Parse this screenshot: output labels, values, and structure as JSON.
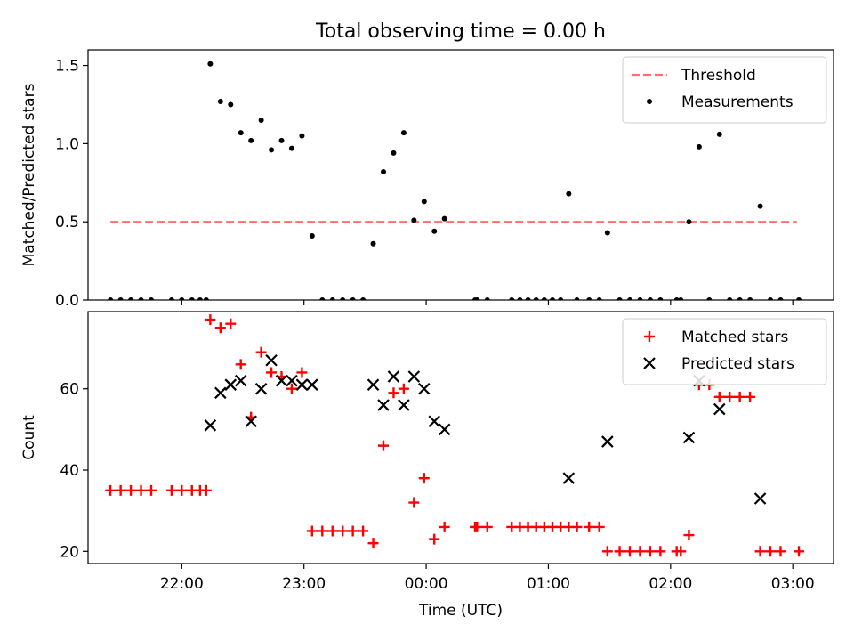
{
  "figure": {
    "title": "Total observing time = 0.00 h"
  },
  "chart_data": [
    {
      "type": "scatter",
      "ylabel": "Matched/Predicted stars",
      "ylim": [
        0,
        1.6
      ],
      "xlim": [
        "21:14",
        "03:20"
      ],
      "yticks": [
        "0.0",
        "0.5",
        "1.0",
        "1.5"
      ],
      "legend_position": "top-right",
      "grid": false,
      "threshold": {
        "name": "Threshold",
        "value": 0.5,
        "x_range": [
          "21:25",
          "03:02"
        ],
        "color": "#ff6f6f",
        "style": "dashed"
      },
      "series": [
        {
          "name": "Measurements",
          "color": "#000000",
          "marker": "dot",
          "points": [
            {
              "x": "21:25",
              "y": 0.0
            },
            {
              "x": "21:30",
              "y": 0.0
            },
            {
              "x": "21:35",
              "y": 0.0
            },
            {
              "x": "21:40",
              "y": 0.0
            },
            {
              "x": "21:45",
              "y": 0.0
            },
            {
              "x": "21:55",
              "y": 0.0
            },
            {
              "x": "22:00",
              "y": 0.0
            },
            {
              "x": "22:05",
              "y": 0.0
            },
            {
              "x": "22:09",
              "y": 0.0
            },
            {
              "x": "22:12",
              "y": 0.0
            },
            {
              "x": "22:14",
              "y": 1.51
            },
            {
              "x": "22:19",
              "y": 1.27
            },
            {
              "x": "22:24",
              "y": 1.25
            },
            {
              "x": "22:29",
              "y": 1.07
            },
            {
              "x": "22:34",
              "y": 1.02
            },
            {
              "x": "22:39",
              "y": 1.15
            },
            {
              "x": "22:44",
              "y": 0.96
            },
            {
              "x": "22:49",
              "y": 1.02
            },
            {
              "x": "22:54",
              "y": 0.97
            },
            {
              "x": "22:59",
              "y": 1.05
            },
            {
              "x": "23:04",
              "y": 0.41
            },
            {
              "x": "23:09",
              "y": 0.0
            },
            {
              "x": "23:14",
              "y": 0.0
            },
            {
              "x": "23:19",
              "y": 0.0
            },
            {
              "x": "23:24",
              "y": 0.0
            },
            {
              "x": "23:29",
              "y": 0.0
            },
            {
              "x": "23:34",
              "y": 0.36
            },
            {
              "x": "23:39",
              "y": 0.82
            },
            {
              "x": "23:44",
              "y": 0.94
            },
            {
              "x": "23:49",
              "y": 1.07
            },
            {
              "x": "23:54",
              "y": 0.51
            },
            {
              "x": "23:59",
              "y": 0.63
            },
            {
              "x": "00:04",
              "y": 0.44
            },
            {
              "x": "00:09",
              "y": 0.52
            },
            {
              "x": "00:24",
              "y": 0.0
            },
            {
              "x": "00:25",
              "y": 0.0
            },
            {
              "x": "00:30",
              "y": 0.0
            },
            {
              "x": "00:42",
              "y": 0.0
            },
            {
              "x": "00:46",
              "y": 0.0
            },
            {
              "x": "00:50",
              "y": 0.0
            },
            {
              "x": "00:54",
              "y": 0.0
            },
            {
              "x": "00:58",
              "y": 0.0
            },
            {
              "x": "01:02",
              "y": 0.0
            },
            {
              "x": "01:06",
              "y": 0.0
            },
            {
              "x": "01:10",
              "y": 0.68
            },
            {
              "x": "01:14",
              "y": 0.0
            },
            {
              "x": "01:20",
              "y": 0.0
            },
            {
              "x": "01:25",
              "y": 0.0
            },
            {
              "x": "01:29",
              "y": 0.43
            },
            {
              "x": "01:35",
              "y": 0.0
            },
            {
              "x": "01:40",
              "y": 0.0
            },
            {
              "x": "01:45",
              "y": 0.0
            },
            {
              "x": "01:50",
              "y": 0.0
            },
            {
              "x": "01:55",
              "y": 0.0
            },
            {
              "x": "02:03",
              "y": 0.0
            },
            {
              "x": "02:05",
              "y": 0.0
            },
            {
              "x": "02:09",
              "y": 0.5
            },
            {
              "x": "02:14",
              "y": 0.98
            },
            {
              "x": "02:19",
              "y": 0.0
            },
            {
              "x": "02:24",
              "y": 1.06
            },
            {
              "x": "02:29",
              "y": 0.0
            },
            {
              "x": "02:34",
              "y": 0.0
            },
            {
              "x": "02:39",
              "y": 0.0
            },
            {
              "x": "02:44",
              "y": 0.6
            },
            {
              "x": "02:49",
              "y": 0.0
            },
            {
              "x": "02:54",
              "y": 0.0
            },
            {
              "x": "03:03",
              "y": 0.0
            }
          ]
        }
      ]
    },
    {
      "type": "scatter",
      "xlabel": "Time (UTC)",
      "ylabel": "Count",
      "ylim": [
        17,
        79
      ],
      "xlim": [
        "21:14",
        "03:20"
      ],
      "xticks": [
        "22:00",
        "23:00",
        "00:00",
        "01:00",
        "02:00",
        "03:00"
      ],
      "yticks": [
        "20",
        "40",
        "60"
      ],
      "legend_position": "top-right",
      "grid": false,
      "series": [
        {
          "name": "Matched stars",
          "color": "#ff0000",
          "marker": "plus",
          "points": [
            {
              "x": "21:25",
              "y": 35
            },
            {
              "x": "21:30",
              "y": 35
            },
            {
              "x": "21:35",
              "y": 35
            },
            {
              "x": "21:40",
              "y": 35
            },
            {
              "x": "21:45",
              "y": 35
            },
            {
              "x": "21:55",
              "y": 35
            },
            {
              "x": "22:00",
              "y": 35
            },
            {
              "x": "22:05",
              "y": 35
            },
            {
              "x": "22:09",
              "y": 35
            },
            {
              "x": "22:12",
              "y": 35
            },
            {
              "x": "22:14",
              "y": 77
            },
            {
              "x": "22:19",
              "y": 75
            },
            {
              "x": "22:24",
              "y": 76
            },
            {
              "x": "22:29",
              "y": 66
            },
            {
              "x": "22:34",
              "y": 53
            },
            {
              "x": "22:39",
              "y": 69
            },
            {
              "x": "22:44",
              "y": 64
            },
            {
              "x": "22:49",
              "y": 63
            },
            {
              "x": "22:54",
              "y": 60
            },
            {
              "x": "22:59",
              "y": 64
            },
            {
              "x": "23:04",
              "y": 25
            },
            {
              "x": "23:09",
              "y": 25
            },
            {
              "x": "23:14",
              "y": 25
            },
            {
              "x": "23:19",
              "y": 25
            },
            {
              "x": "23:24",
              "y": 25
            },
            {
              "x": "23:29",
              "y": 25
            },
            {
              "x": "23:34",
              "y": 22
            },
            {
              "x": "23:39",
              "y": 46
            },
            {
              "x": "23:44",
              "y": 59
            },
            {
              "x": "23:49",
              "y": 60
            },
            {
              "x": "23:54",
              "y": 32
            },
            {
              "x": "23:59",
              "y": 38
            },
            {
              "x": "00:04",
              "y": 23
            },
            {
              "x": "00:09",
              "y": 26
            },
            {
              "x": "00:24",
              "y": 26
            },
            {
              "x": "00:25",
              "y": 26
            },
            {
              "x": "00:30",
              "y": 26
            },
            {
              "x": "00:42",
              "y": 26
            },
            {
              "x": "00:46",
              "y": 26
            },
            {
              "x": "00:50",
              "y": 26
            },
            {
              "x": "00:54",
              "y": 26
            },
            {
              "x": "00:58",
              "y": 26
            },
            {
              "x": "01:02",
              "y": 26
            },
            {
              "x": "01:06",
              "y": 26
            },
            {
              "x": "01:10",
              "y": 26
            },
            {
              "x": "01:14",
              "y": 26
            },
            {
              "x": "01:20",
              "y": 26
            },
            {
              "x": "01:25",
              "y": 26
            },
            {
              "x": "01:29",
              "y": 20
            },
            {
              "x": "01:35",
              "y": 20
            },
            {
              "x": "01:40",
              "y": 20
            },
            {
              "x": "01:45",
              "y": 20
            },
            {
              "x": "01:50",
              "y": 20
            },
            {
              "x": "01:55",
              "y": 20
            },
            {
              "x": "02:03",
              "y": 20
            },
            {
              "x": "02:05",
              "y": 20
            },
            {
              "x": "02:09",
              "y": 24
            },
            {
              "x": "02:14",
              "y": 61
            },
            {
              "x": "02:19",
              "y": 61
            },
            {
              "x": "02:24",
              "y": 58
            },
            {
              "x": "02:29",
              "y": 58
            },
            {
              "x": "02:34",
              "y": 58
            },
            {
              "x": "02:39",
              "y": 58
            },
            {
              "x": "02:44",
              "y": 20
            },
            {
              "x": "02:49",
              "y": 20
            },
            {
              "x": "02:54",
              "y": 20
            },
            {
              "x": "03:03",
              "y": 20
            }
          ]
        },
        {
          "name": "Predicted stars",
          "color": "#000000",
          "marker": "x",
          "points": [
            {
              "x": "22:14",
              "y": 51
            },
            {
              "x": "22:19",
              "y": 59
            },
            {
              "x": "22:24",
              "y": 61
            },
            {
              "x": "22:29",
              "y": 62
            },
            {
              "x": "22:34",
              "y": 52
            },
            {
              "x": "22:39",
              "y": 60
            },
            {
              "x": "22:44",
              "y": 67
            },
            {
              "x": "22:49",
              "y": 62
            },
            {
              "x": "22:54",
              "y": 62
            },
            {
              "x": "22:59",
              "y": 61
            },
            {
              "x": "23:04",
              "y": 61
            },
            {
              "x": "23:34",
              "y": 61
            },
            {
              "x": "23:39",
              "y": 56
            },
            {
              "x": "23:44",
              "y": 63
            },
            {
              "x": "23:49",
              "y": 56
            },
            {
              "x": "23:54",
              "y": 63
            },
            {
              "x": "23:59",
              "y": 60
            },
            {
              "x": "00:04",
              "y": 52
            },
            {
              "x": "00:09",
              "y": 50
            },
            {
              "x": "01:10",
              "y": 38
            },
            {
              "x": "01:29",
              "y": 47
            },
            {
              "x": "02:09",
              "y": 48
            },
            {
              "x": "02:14",
              "y": 62
            },
            {
              "x": "02:24",
              "y": 55
            },
            {
              "x": "02:44",
              "y": 33
            }
          ]
        }
      ]
    }
  ]
}
